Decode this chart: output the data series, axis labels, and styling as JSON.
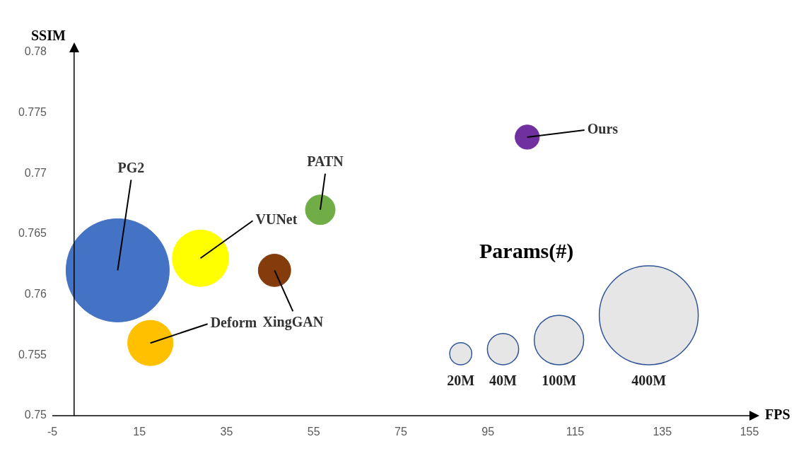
{
  "chart_data": {
    "type": "bubble",
    "xlabel": "FPS",
    "ylabel": "SSIM",
    "legend_title": "Params(#)",
    "xlim": [
      -5,
      155
    ],
    "xticks": [
      -5,
      15,
      35,
      55,
      75,
      95,
      115,
      135,
      155
    ],
    "ylim": [
      0.75,
      0.78
    ],
    "yticks": [
      0.75,
      0.755,
      0.76,
      0.765,
      0.77,
      0.775,
      0.78
    ],
    "size_legend": [
      {
        "value": 20,
        "label": "20M"
      },
      {
        "value": 40,
        "label": "40M"
      },
      {
        "value": 100,
        "label": "100M"
      },
      {
        "value": 400,
        "label": "400M"
      }
    ],
    "series": [
      {
        "name": "PG2",
        "color": "#4472c4",
        "x": [
          10
        ],
        "values": [
          0.762
        ],
        "sizes": [
          435
        ]
      },
      {
        "name": "VUNet",
        "color": "#ffff00",
        "x": [
          29
        ],
        "values": [
          0.763
        ],
        "sizes": [
          130
        ]
      },
      {
        "name": "Deform",
        "color": "#ffc000",
        "x": [
          17.5
        ],
        "values": [
          0.756
        ],
        "sizes": [
          84
        ]
      },
      {
        "name": "XingGAN",
        "color": "#843c0c",
        "x": [
          46
        ],
        "values": [
          0.762
        ],
        "sizes": [
          43
        ]
      },
      {
        "name": "PATN",
        "color": "#70ad47",
        "x": [
          56.5
        ],
        "values": [
          0.767
        ],
        "sizes": [
          36
        ]
      },
      {
        "name": "Ours",
        "color": "#7030a0",
        "x": [
          104
        ],
        "values": [
          0.773
        ],
        "sizes": [
          24
        ]
      }
    ]
  }
}
